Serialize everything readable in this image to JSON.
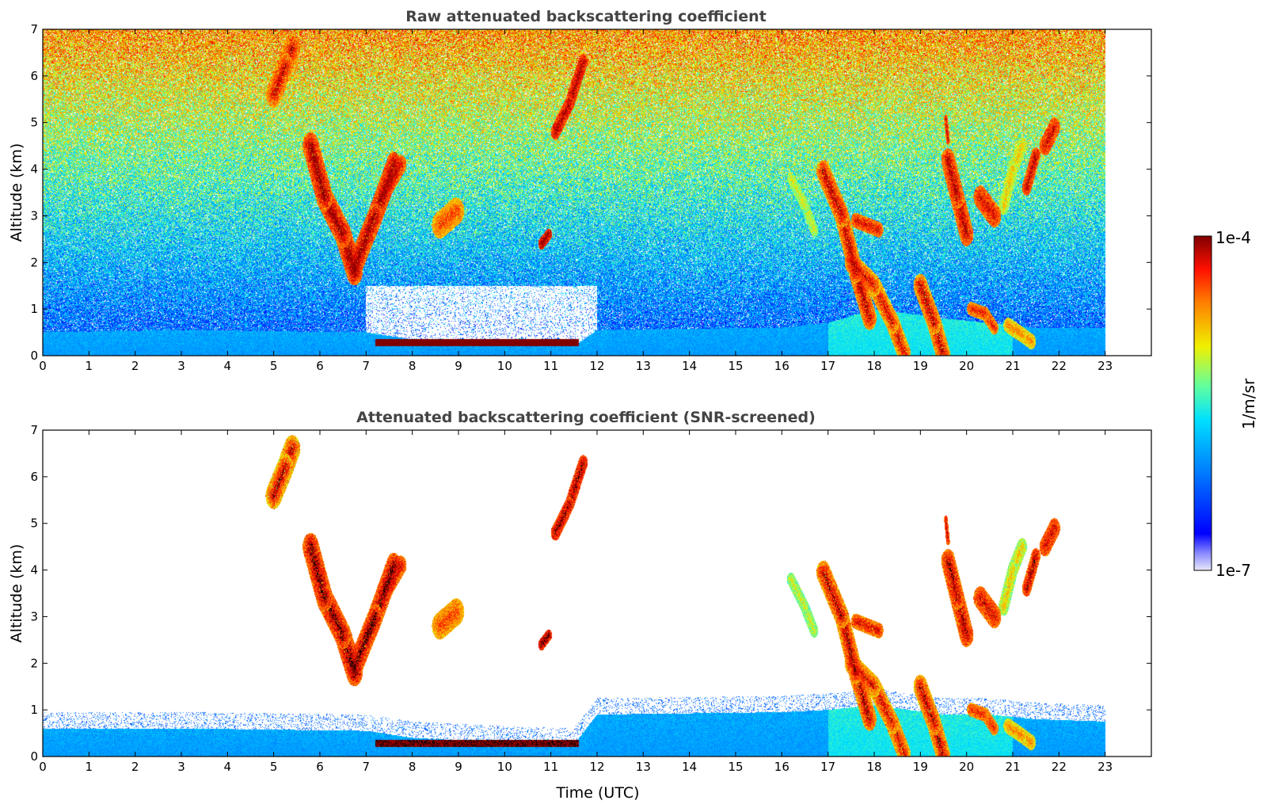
{
  "figure": {
    "colorbar": {
      "label": "1/m/sr",
      "max_label": "1e-4",
      "min_label": "1e-7",
      "scale": "log",
      "colormap": "jet"
    },
    "xlabel": "Time (UTC)"
  },
  "chart_data": [
    {
      "type": "heatmap",
      "title": "Raw attenuated backscattering coefficient",
      "xlabel": "",
      "ylabel": "Altitude (km)",
      "xlim": [
        0,
        24
      ],
      "ylim": [
        0,
        7
      ],
      "xticks": [
        "0",
        "1",
        "2",
        "3",
        "4",
        "5",
        "6",
        "7",
        "8",
        "9",
        "10",
        "11",
        "12",
        "13",
        "14",
        "15",
        "16",
        "17",
        "18",
        "19",
        "20",
        "21",
        "22",
        "23"
      ],
      "yticks": [
        "0",
        "1",
        "2",
        "3",
        "4",
        "5",
        "6",
        "7"
      ],
      "data_end_time": 23,
      "noise_background": true,
      "boundary_layer": [
        [
          0,
          0.5
        ],
        [
          3,
          0.55
        ],
        [
          7,
          0.5
        ],
        [
          8,
          0.35
        ],
        [
          10,
          0.25
        ],
        [
          11.5,
          0.2
        ],
        [
          12,
          0.55
        ],
        [
          16,
          0.6
        ],
        [
          17,
          0.7
        ],
        [
          18,
          1.0
        ],
        [
          19.5,
          0.8
        ],
        [
          20.5,
          0.7
        ],
        [
          21.5,
          0.6
        ],
        [
          23,
          0.6
        ]
      ],
      "features": [
        {
          "kind": "plume",
          "path": [
            [
              5.0,
              5.6
            ],
            [
              5.25,
              6.2
            ],
            [
              5.4,
              6.6
            ]
          ],
          "width": 0.35,
          "min": -5.4,
          "max": -4.1
        },
        {
          "kind": "plume",
          "path": [
            [
              5.8,
              4.5
            ],
            [
              6.1,
              3.4
            ],
            [
              6.5,
              2.6
            ],
            [
              6.75,
              1.8
            ]
          ],
          "width": 0.35,
          "min": -5.0,
          "max": -4.0
        },
        {
          "kind": "plume",
          "path": [
            [
              6.75,
              1.9
            ],
            [
              7.2,
              3.0
            ],
            [
              7.6,
              4.1
            ]
          ],
          "width": 0.32,
          "min": -5.0,
          "max": -4.0
        },
        {
          "kind": "plume",
          "path": [
            [
              7.4,
              3.5
            ],
            [
              7.75,
              4.1
            ]
          ],
          "width": 0.25,
          "min": -4.9,
          "max": -4.2
        },
        {
          "kind": "plume",
          "path": [
            [
              8.6,
              2.8
            ],
            [
              8.95,
              3.1
            ]
          ],
          "width": 0.35,
          "min": -5.1,
          "max": -4.4
        },
        {
          "kind": "plume",
          "path": [
            [
              10.8,
              2.4
            ],
            [
              10.95,
              2.6
            ]
          ],
          "width": 0.15,
          "min": -4.6,
          "max": -4.0
        },
        {
          "kind": "plume",
          "path": [
            [
              11.1,
              4.8
            ],
            [
              11.4,
              5.4
            ],
            [
              11.7,
              6.3
            ]
          ],
          "width": 0.2,
          "min": -4.7,
          "max": -4.1
        },
        {
          "kind": "layer",
          "x": [
            7.2,
            11.6
          ],
          "center": 0.28,
          "thickness": 0.14,
          "value": -4.0
        },
        {
          "kind": "plume",
          "path": [
            [
              16.2,
              3.8
            ],
            [
              16.5,
              3.2
            ],
            [
              16.7,
              2.7
            ]
          ],
          "width": 0.18,
          "min": -5.6,
          "max": -5.0
        },
        {
          "kind": "plume",
          "path": [
            [
              16.9,
              3.95
            ],
            [
              17.3,
              3.0
            ],
            [
              17.6,
              1.8
            ],
            [
              17.9,
              0.8
            ]
          ],
          "width": 0.3,
          "min": -5.2,
          "max": -4.1
        },
        {
          "kind": "plume",
          "path": [
            [
              17.5,
              2.0
            ],
            [
              18.0,
              1.5
            ],
            [
              18.4,
              0.7
            ],
            [
              18.65,
              0.05
            ]
          ],
          "width": 0.28,
          "min": -5.3,
          "max": -4.2
        },
        {
          "kind": "plume",
          "path": [
            [
              19.0,
              1.5
            ],
            [
              19.3,
              0.7
            ],
            [
              19.5,
              0.0
            ]
          ],
          "width": 0.3,
          "min": -5.3,
          "max": -4.1
        },
        {
          "kind": "plume",
          "path": [
            [
              17.6,
              2.9
            ],
            [
              18.1,
              2.7
            ]
          ],
          "width": 0.2,
          "min": -5.0,
          "max": -4.2
        },
        {
          "kind": "plume",
          "path": [
            [
              19.6,
              4.2
            ],
            [
              19.8,
              3.4
            ],
            [
              20.0,
              2.6
            ]
          ],
          "width": 0.3,
          "min": -5.0,
          "max": -4.1
        },
        {
          "kind": "plume",
          "path": [
            [
              19.55,
              5.1
            ],
            [
              19.6,
              4.6
            ]
          ],
          "width": 0.08,
          "min": -4.8,
          "max": -4.2
        },
        {
          "kind": "plume",
          "path": [
            [
              20.3,
              3.4
            ],
            [
              20.6,
              3.0
            ]
          ],
          "width": 0.3,
          "min": -4.9,
          "max": -4.2
        },
        {
          "kind": "plume",
          "path": [
            [
              20.8,
              3.2
            ],
            [
              21.0,
              4.0
            ],
            [
              21.2,
              4.5
            ]
          ],
          "width": 0.22,
          "min": -5.6,
          "max": -4.8
        },
        {
          "kind": "plume",
          "path": [
            [
              21.3,
              3.6
            ],
            [
              21.5,
              4.3
            ]
          ],
          "width": 0.2,
          "min": -4.9,
          "max": -4.1
        },
        {
          "kind": "plume",
          "path": [
            [
              21.7,
              4.5
            ],
            [
              21.9,
              4.9
            ]
          ],
          "width": 0.25,
          "min": -4.8,
          "max": -4.2
        },
        {
          "kind": "plume",
          "path": [
            [
              20.1,
              1.0
            ],
            [
              20.4,
              0.9
            ],
            [
              20.6,
              0.6
            ]
          ],
          "width": 0.18,
          "min": -5.0,
          "max": -4.3
        },
        {
          "kind": "plume",
          "path": [
            [
              20.9,
              0.65
            ],
            [
              21.2,
              0.45
            ],
            [
              21.4,
              0.3
            ]
          ],
          "width": 0.2,
          "min": -5.3,
          "max": -4.6
        }
      ]
    },
    {
      "type": "heatmap",
      "title": "Attenuated backscattering coefficient (SNR-screened)",
      "xlabel": "Time (UTC)",
      "ylabel": "Altitude (km)",
      "xlim": [
        0,
        24
      ],
      "ylim": [
        0,
        7
      ],
      "xticks": [
        "0",
        "1",
        "2",
        "3",
        "4",
        "5",
        "6",
        "7",
        "8",
        "9",
        "10",
        "11",
        "12",
        "13",
        "14",
        "15",
        "16",
        "17",
        "18",
        "19",
        "20",
        "21",
        "22",
        "23"
      ],
      "yticks": [
        "0",
        "1",
        "2",
        "3",
        "4",
        "5",
        "6",
        "7"
      ],
      "data_end_time": 23,
      "noise_background": false,
      "boundary_layer": [
        [
          0,
          0.6
        ],
        [
          3,
          0.6
        ],
        [
          7,
          0.55
        ],
        [
          8,
          0.4
        ],
        [
          10,
          0.3
        ],
        [
          11.5,
          0.25
        ],
        [
          12,
          0.9
        ],
        [
          16,
          0.95
        ],
        [
          17,
          1.0
        ],
        [
          18,
          1.1
        ],
        [
          19.5,
          0.9
        ],
        [
          20.5,
          0.9
        ],
        [
          21.5,
          0.8
        ],
        [
          23,
          0.75
        ]
      ],
      "features": [
        {
          "kind": "plume",
          "path": [
            [
              5.0,
              5.6
            ],
            [
              5.25,
              6.2
            ],
            [
              5.4,
              6.6
            ]
          ],
          "width": 0.35,
          "min": -5.4,
          "max": -4.1
        },
        {
          "kind": "plume",
          "path": [
            [
              5.8,
              4.5
            ],
            [
              6.1,
              3.4
            ],
            [
              6.5,
              2.6
            ],
            [
              6.75,
              1.8
            ]
          ],
          "width": 0.35,
          "min": -5.0,
          "max": -4.0
        },
        {
          "kind": "plume",
          "path": [
            [
              6.75,
              1.9
            ],
            [
              7.2,
              3.0
            ],
            [
              7.6,
              4.1
            ]
          ],
          "width": 0.32,
          "min": -5.0,
          "max": -4.0
        },
        {
          "kind": "plume",
          "path": [
            [
              7.4,
              3.5
            ],
            [
              7.75,
              4.1
            ]
          ],
          "width": 0.25,
          "min": -4.9,
          "max": -4.2
        },
        {
          "kind": "plume",
          "path": [
            [
              8.6,
              2.8
            ],
            [
              8.95,
              3.1
            ]
          ],
          "width": 0.35,
          "min": -5.1,
          "max": -4.4
        },
        {
          "kind": "plume",
          "path": [
            [
              10.8,
              2.4
            ],
            [
              10.95,
              2.6
            ]
          ],
          "width": 0.15,
          "min": -4.6,
          "max": -4.0
        },
        {
          "kind": "plume",
          "path": [
            [
              11.1,
              4.8
            ],
            [
              11.4,
              5.4
            ],
            [
              11.7,
              6.3
            ]
          ],
          "width": 0.2,
          "min": -4.7,
          "max": -4.1
        },
        {
          "kind": "layer",
          "x": [
            7.2,
            11.6
          ],
          "center": 0.28,
          "thickness": 0.14,
          "value": -4.0
        },
        {
          "kind": "plume",
          "path": [
            [
              16.2,
              3.8
            ],
            [
              16.5,
              3.2
            ],
            [
              16.7,
              2.7
            ]
          ],
          "width": 0.18,
          "min": -5.6,
          "max": -5.0
        },
        {
          "kind": "plume",
          "path": [
            [
              16.9,
              3.95
            ],
            [
              17.3,
              3.0
            ],
            [
              17.6,
              1.8
            ],
            [
              17.9,
              0.8
            ]
          ],
          "width": 0.3,
          "min": -5.2,
          "max": -4.1
        },
        {
          "kind": "plume",
          "path": [
            [
              17.5,
              2.0
            ],
            [
              18.0,
              1.5
            ],
            [
              18.4,
              0.7
            ],
            [
              18.65,
              0.05
            ]
          ],
          "width": 0.28,
          "min": -5.3,
          "max": -4.2
        },
        {
          "kind": "plume",
          "path": [
            [
              19.0,
              1.5
            ],
            [
              19.3,
              0.7
            ],
            [
              19.5,
              0.0
            ]
          ],
          "width": 0.3,
          "min": -5.3,
          "max": -4.1
        },
        {
          "kind": "plume",
          "path": [
            [
              17.6,
              2.9
            ],
            [
              18.1,
              2.7
            ]
          ],
          "width": 0.2,
          "min": -5.0,
          "max": -4.2
        },
        {
          "kind": "plume",
          "path": [
            [
              19.6,
              4.2
            ],
            [
              19.8,
              3.4
            ],
            [
              20.0,
              2.6
            ]
          ],
          "width": 0.3,
          "min": -5.0,
          "max": -4.1
        },
        {
          "kind": "plume",
          "path": [
            [
              19.55,
              5.1
            ],
            [
              19.6,
              4.6
            ]
          ],
          "width": 0.08,
          "min": -4.8,
          "max": -4.2
        },
        {
          "kind": "plume",
          "path": [
            [
              20.3,
              3.4
            ],
            [
              20.6,
              3.0
            ]
          ],
          "width": 0.3,
          "min": -4.9,
          "max": -4.2
        },
        {
          "kind": "plume",
          "path": [
            [
              20.8,
              3.2
            ],
            [
              21.0,
              4.0
            ],
            [
              21.2,
              4.5
            ]
          ],
          "width": 0.22,
          "min": -5.6,
          "max": -4.8
        },
        {
          "kind": "plume",
          "path": [
            [
              21.3,
              3.6
            ],
            [
              21.5,
              4.3
            ]
          ],
          "width": 0.2,
          "min": -4.9,
          "max": -4.1
        },
        {
          "kind": "plume",
          "path": [
            [
              21.7,
              4.5
            ],
            [
              21.9,
              4.9
            ]
          ],
          "width": 0.25,
          "min": -4.8,
          "max": -4.2
        },
        {
          "kind": "plume",
          "path": [
            [
              20.1,
              1.0
            ],
            [
              20.4,
              0.9
            ],
            [
              20.6,
              0.6
            ]
          ],
          "width": 0.18,
          "min": -5.0,
          "max": -4.3
        },
        {
          "kind": "plume",
          "path": [
            [
              20.9,
              0.65
            ],
            [
              21.2,
              0.45
            ],
            [
              21.4,
              0.3
            ]
          ],
          "width": 0.2,
          "min": -5.3,
          "max": -4.6
        }
      ]
    }
  ]
}
